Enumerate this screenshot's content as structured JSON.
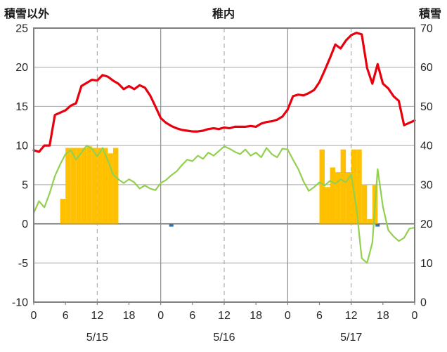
{
  "header": {
    "left_axis_title": "積雪以外",
    "chart_title": "稚内",
    "right_axis_title": "積雪"
  },
  "chart_data": {
    "type": "line",
    "title": "稚内",
    "grid": true,
    "legend": "none",
    "left_axis": {
      "label": "積雪以外",
      "min": -10,
      "max": 25,
      "ticks": [
        25,
        20,
        15,
        10,
        5,
        0,
        -5,
        -10
      ]
    },
    "right_axis": {
      "label": "積雪",
      "min": 0,
      "max": 70,
      "ticks": [
        70,
        60,
        50,
        40,
        30,
        20,
        10,
        0
      ]
    },
    "x_axis": {
      "total_hours": 72,
      "tick_step_hours": 6,
      "tick_labels": [
        "0",
        "6",
        "12",
        "18",
        "0",
        "6",
        "12",
        "18",
        "0",
        "6",
        "12",
        "18",
        "0"
      ],
      "day_labels": [
        {
          "label": "5/15",
          "hour": 12
        },
        {
          "label": "5/16",
          "hour": 36
        },
        {
          "label": "5/17",
          "hour": 60
        }
      ],
      "noon_gridlines_hours": [
        12,
        36,
        60
      ],
      "midnight_gridlines_hours": [
        24,
        48
      ]
    },
    "series": [
      {
        "name": "red-line",
        "color": "#e8000d",
        "width": 3.2,
        "axis": "left",
        "start_hour": 0,
        "step_hours": 1,
        "values": [
          9.4,
          9.2,
          10.0,
          10.0,
          13.9,
          14.2,
          14.5,
          15.1,
          15.4,
          17.6,
          18.0,
          18.4,
          18.3,
          19.0,
          18.8,
          18.3,
          17.9,
          17.2,
          17.6,
          17.2,
          17.7,
          17.4,
          16.4,
          15.0,
          13.5,
          12.9,
          12.5,
          12.2,
          12.0,
          11.9,
          11.8,
          11.8,
          11.9,
          12.1,
          12.2,
          12.1,
          12.3,
          12.2,
          12.4,
          12.4,
          12.4,
          12.5,
          12.4,
          12.8,
          13.0,
          13.1,
          13.3,
          13.7,
          14.6,
          16.3,
          16.5,
          16.4,
          16.7,
          17.1,
          18.1,
          19.6,
          21.2,
          22.9,
          22.4,
          23.4,
          24.1,
          24.4,
          24.2,
          19.9,
          17.9,
          20.4,
          17.9,
          17.3,
          16.3,
          15.7,
          12.6,
          12.9,
          13.2
        ]
      },
      {
        "name": "green-line",
        "color": "#92d050",
        "width": 2.2,
        "axis": "left",
        "start_hour": 0,
        "step_hours": 1,
        "values": [
          1.4,
          2.9,
          2.1,
          3.9,
          6.1,
          7.6,
          8.9,
          9.4,
          8.2,
          9.1,
          10.0,
          9.6,
          8.6,
          9.7,
          8.1,
          6.3,
          5.7,
          5.2,
          5.7,
          5.3,
          4.5,
          4.9,
          4.5,
          4.3,
          5.2,
          5.6,
          6.2,
          6.7,
          7.5,
          8.2,
          8.0,
          8.7,
          8.3,
          9.1,
          8.7,
          9.3,
          9.9,
          9.6,
          9.2,
          8.9,
          9.5,
          8.7,
          9.1,
          8.5,
          9.7,
          8.9,
          8.5,
          9.6,
          9.5,
          8.2,
          7.0,
          5.4,
          4.2,
          4.7,
          5.3,
          4.9,
          5.5,
          5.1,
          5.7,
          5.3,
          6.3,
          2.0,
          -4.4,
          -5.0,
          -2.4,
          7.0,
          2.2,
          -0.8,
          -1.6,
          -2.2,
          -1.8,
          -0.6,
          -0.5
        ]
      }
    ],
    "bars": {
      "name": "orange-bars",
      "color": "#ffc000",
      "axis": "left",
      "width_hours": 1,
      "points": [
        {
          "hour": 5,
          "value": 3.2
        },
        {
          "hour": 6,
          "value": 9.7
        },
        {
          "hour": 7,
          "value": 9.7
        },
        {
          "hour": 8,
          "value": 9.7
        },
        {
          "hour": 9,
          "value": 9.7
        },
        {
          "hour": 10,
          "value": 9.9
        },
        {
          "hour": 11,
          "value": 9.7
        },
        {
          "hour": 12,
          "value": 9.7
        },
        {
          "hour": 13,
          "value": 9.7
        },
        {
          "hour": 14,
          "value": 9.0
        },
        {
          "hour": 15,
          "value": 9.7
        },
        {
          "hour": 54,
          "value": 9.5
        },
        {
          "hour": 55,
          "value": 4.7
        },
        {
          "hour": 56,
          "value": 7.2
        },
        {
          "hour": 57,
          "value": 6.6
        },
        {
          "hour": 58,
          "value": 9.5
        },
        {
          "hour": 59,
          "value": 6.6
        },
        {
          "hour": 60,
          "value": 9.5
        },
        {
          "hour": 61,
          "value": 9.5
        },
        {
          "hour": 62,
          "value": 5.0
        },
        {
          "hour": 63,
          "value": 0.6
        },
        {
          "hour": 64,
          "value": 5.0
        }
      ]
    },
    "marks": {
      "name": "blue-marks",
      "color": "#2e74b5",
      "points": [
        {
          "hour": 26,
          "value": 0.4
        },
        {
          "hour": 65,
          "value": 0.4
        }
      ]
    }
  }
}
